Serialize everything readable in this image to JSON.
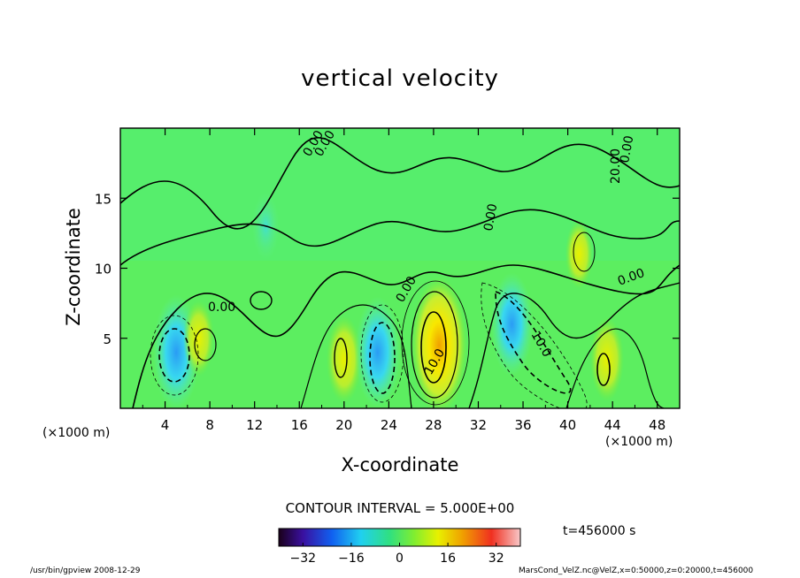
{
  "chart_data": {
    "type": "heatmap",
    "title": "vertical velocity",
    "xlabel": "X-coordinate",
    "ylabel": "Z-coordinate",
    "x_unit_left": "(×1000 m)",
    "x_unit_right": "(×1000 m)",
    "x_ticks": [
      "4",
      "8",
      "12",
      "16",
      "20",
      "24",
      "28",
      "32",
      "36",
      "40",
      "44",
      "48"
    ],
    "y_ticks": [
      "5",
      "10",
      "15"
    ],
    "xlim": [
      0,
      50
    ],
    "ylim": [
      0,
      20
    ],
    "contour_labels": [
      "0.00",
      "0.00",
      "0.00",
      "0.00",
      "0.00",
      "10.0",
      "10.0",
      "0.00",
      "20.00",
      "0.00"
    ],
    "contour_interval": "CONTOUR INTERVAL = 5.000E+00",
    "colorbar": {
      "ticks": [
        "−32",
        "−16",
        "0",
        "16",
        "32"
      ],
      "range": [
        -40,
        40
      ]
    },
    "cells": [
      {
        "x": 5,
        "z": 4,
        "value": -16
      },
      {
        "x": 7,
        "z": 5,
        "value": 6
      },
      {
        "x": 20,
        "z": 3.5,
        "value": 9
      },
      {
        "x": 23,
        "z": 4,
        "value": -15
      },
      {
        "x": 28.5,
        "z": 4.5,
        "value": 22
      },
      {
        "x": 35,
        "z": 6,
        "value": -13
      },
      {
        "x": 43.5,
        "z": 3.5,
        "value": 8
      },
      {
        "x": 41,
        "z": 11,
        "value": 4
      },
      {
        "x": 13,
        "z": 13,
        "value": -4
      }
    ]
  },
  "time_label": "t=456000  s",
  "footer_left": "/usr/bin/gpview   2008-12-29",
  "footer_right": "MarsCond_VelZ.nc@VelZ,x=0:50000,z=0:20000,t=456000"
}
